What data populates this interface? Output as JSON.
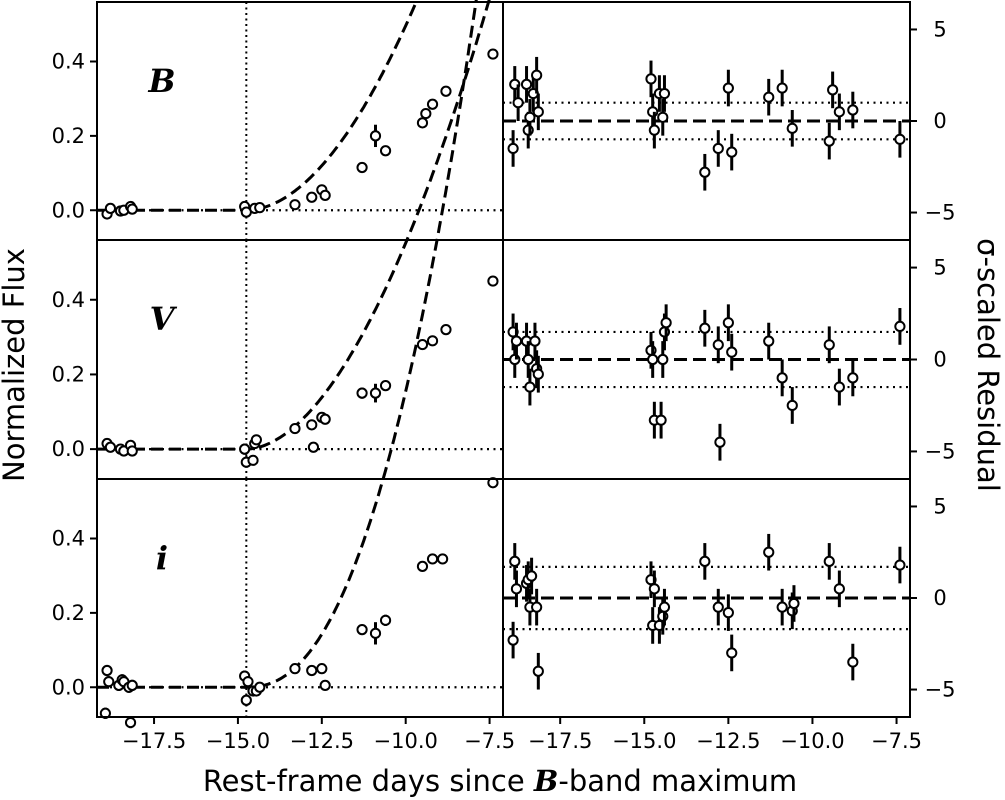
{
  "chart_data": {
    "type": "scatter",
    "xlabel_prefix": "Rest-frame days since ",
    "xlabel_band": "B",
    "xlabel_suffix": "-band maximum",
    "ylabel_left": "Normalized Flux",
    "ylabel_right": "σ-scaled Residual",
    "xlim": [
      -19.2,
      -7.1
    ],
    "flux_ylim": [
      -0.08,
      0.56
    ],
    "resid_ylim": [
      -6.5,
      6.5
    ],
    "x_ticks": [
      -17.5,
      -15.0,
      -12.5,
      -10.0,
      -7.5
    ],
    "x_tick_labels": [
      "−17.5",
      "−15.0",
      "−12.5",
      "−10.0",
      "−7.5"
    ],
    "flux_ticks": [
      0.0,
      0.2,
      0.4
    ],
    "flux_tick_labels": [
      "0.0",
      "0.2",
      "0.4"
    ],
    "resid_ticks": [
      -5,
      0,
      5
    ],
    "resid_tick_labels": [
      "−5",
      "0",
      "5"
    ],
    "first_light_day": -14.75,
    "panels": [
      {
        "band": "B",
        "resid_band": 1.0,
        "fit_coeff": 0.0257,
        "fit_power": 1.9,
        "flux_points": [
          {
            "x": -18.9,
            "y": -0.01,
            "e": 0.01
          },
          {
            "x": -18.8,
            "y": 0.005,
            "e": 0.01
          },
          {
            "x": -18.5,
            "y": -0.002,
            "e": 0.01
          },
          {
            "x": -18.4,
            "y": 0.0,
            "e": 0.01
          },
          {
            "x": -18.2,
            "y": 0.01,
            "e": 0.01
          },
          {
            "x": -18.15,
            "y": 0.003,
            "e": 0.01
          },
          {
            "x": -14.8,
            "y": 0.01,
            "e": 0.012
          },
          {
            "x": -14.75,
            "y": -0.005,
            "e": 0.012
          },
          {
            "x": -14.5,
            "y": 0.005,
            "e": 0.01
          },
          {
            "x": -14.35,
            "y": 0.007,
            "e": 0.01
          },
          {
            "x": -13.3,
            "y": 0.015,
            "e": 0.01
          },
          {
            "x": -12.8,
            "y": 0.035,
            "e": 0.01
          },
          {
            "x": -12.5,
            "y": 0.055,
            "e": 0.012
          },
          {
            "x": -12.4,
            "y": 0.04,
            "e": 0.01
          },
          {
            "x": -11.3,
            "y": 0.115,
            "e": 0.01
          },
          {
            "x": -10.9,
            "y": 0.2,
            "e": 0.03
          },
          {
            "x": -10.6,
            "y": 0.16,
            "e": 0.01
          },
          {
            "x": -9.5,
            "y": 0.235,
            "e": 0.01
          },
          {
            "x": -9.4,
            "y": 0.26,
            "e": 0.01
          },
          {
            "x": -9.2,
            "y": 0.285,
            "e": 0.01
          },
          {
            "x": -8.8,
            "y": 0.32,
            "e": 0.01
          },
          {
            "x": -7.4,
            "y": 0.42,
            "e": 0.01
          }
        ],
        "resid_points": [
          {
            "x": -18.9,
            "y": -1.5,
            "e": 1.0
          },
          {
            "x": -18.85,
            "y": 2.0,
            "e": 1.0
          },
          {
            "x": -18.75,
            "y": 1.0,
            "e": 1.0
          },
          {
            "x": -18.5,
            "y": 2.0,
            "e": 1.0
          },
          {
            "x": -18.45,
            "y": -0.5,
            "e": 1.0
          },
          {
            "x": -18.4,
            "y": 0.2,
            "e": 1.0
          },
          {
            "x": -18.3,
            "y": 1.5,
            "e": 1.0
          },
          {
            "x": -18.2,
            "y": 2.5,
            "e": 1.0
          },
          {
            "x": -18.15,
            "y": 0.5,
            "e": 1.0
          },
          {
            "x": -14.8,
            "y": 2.3,
            "e": 1.0
          },
          {
            "x": -14.75,
            "y": 0.5,
            "e": 1.0
          },
          {
            "x": -14.7,
            "y": -0.5,
            "e": 1.0
          },
          {
            "x": -14.55,
            "y": 1.5,
            "e": 1.0
          },
          {
            "x": -14.45,
            "y": 0.2,
            "e": 1.0
          },
          {
            "x": -14.4,
            "y": 1.5,
            "e": 1.0
          },
          {
            "x": -13.2,
            "y": -2.8,
            "e": 1.0
          },
          {
            "x": -12.8,
            "y": -1.5,
            "e": 1.0
          },
          {
            "x": -12.5,
            "y": 1.8,
            "e": 1.0
          },
          {
            "x": -12.4,
            "y": -1.7,
            "e": 1.0
          },
          {
            "x": -11.3,
            "y": 1.3,
            "e": 1.0
          },
          {
            "x": -10.9,
            "y": 1.8,
            "e": 1.0
          },
          {
            "x": -10.6,
            "y": -0.4,
            "e": 1.0
          },
          {
            "x": -9.5,
            "y": -1.1,
            "e": 1.0
          },
          {
            "x": -9.4,
            "y": 1.7,
            "e": 1.0
          },
          {
            "x": -9.2,
            "y": 0.5,
            "e": 1.0
          },
          {
            "x": -8.8,
            "y": 0.6,
            "e": 1.0
          },
          {
            "x": -7.4,
            "y": -1.0,
            "e": 1.0
          }
        ]
      },
      {
        "band": "V",
        "resid_band": 1.5,
        "fit_coeff": 0.0309,
        "fit_power": 1.85,
        "flux_points": [
          {
            "x": -18.9,
            "y": 0.015,
            "e": 0.01
          },
          {
            "x": -18.8,
            "y": 0.005,
            "e": 0.01
          },
          {
            "x": -18.5,
            "y": 0.0,
            "e": 0.01
          },
          {
            "x": -18.4,
            "y": -0.005,
            "e": 0.01
          },
          {
            "x": -18.2,
            "y": 0.01,
            "e": 0.01
          },
          {
            "x": -18.15,
            "y": -0.005,
            "e": 0.01
          },
          {
            "x": -14.8,
            "y": 0.0,
            "e": 0.015
          },
          {
            "x": -14.75,
            "y": -0.035,
            "e": 0.015
          },
          {
            "x": -14.55,
            "y": -0.03,
            "e": 0.01
          },
          {
            "x": -14.5,
            "y": 0.015,
            "e": 0.01
          },
          {
            "x": -14.45,
            "y": 0.025,
            "e": 0.01
          },
          {
            "x": -13.3,
            "y": 0.055,
            "e": 0.01
          },
          {
            "x": -12.8,
            "y": 0.065,
            "e": 0.01
          },
          {
            "x": -12.75,
            "y": 0.005,
            "e": 0.01
          },
          {
            "x": -12.5,
            "y": 0.085,
            "e": 0.01
          },
          {
            "x": -12.4,
            "y": 0.08,
            "e": 0.01
          },
          {
            "x": -11.3,
            "y": 0.15,
            "e": 0.015
          },
          {
            "x": -10.9,
            "y": 0.15,
            "e": 0.025
          },
          {
            "x": -10.6,
            "y": 0.17,
            "e": 0.012
          },
          {
            "x": -9.5,
            "y": 0.28,
            "e": 0.01
          },
          {
            "x": -9.2,
            "y": 0.29,
            "e": 0.01
          },
          {
            "x": -8.8,
            "y": 0.32,
            "e": 0.01
          },
          {
            "x": -7.4,
            "y": 0.45,
            "e": 0.01
          }
        ],
        "resid_points": [
          {
            "x": -18.9,
            "y": 1.5,
            "e": 1.0
          },
          {
            "x": -18.85,
            "y": 0.0,
            "e": 1.0
          },
          {
            "x": -18.8,
            "y": 1.0,
            "e": 1.0
          },
          {
            "x": -18.5,
            "y": 1.0,
            "e": 1.0
          },
          {
            "x": -18.45,
            "y": 0.0,
            "e": 1.0
          },
          {
            "x": -18.4,
            "y": -1.5,
            "e": 1.0
          },
          {
            "x": -18.25,
            "y": 1.0,
            "e": 1.0
          },
          {
            "x": -18.2,
            "y": -0.5,
            "e": 1.0
          },
          {
            "x": -18.15,
            "y": -0.8,
            "e": 1.0
          },
          {
            "x": -14.8,
            "y": 0.5,
            "e": 1.0
          },
          {
            "x": -14.75,
            "y": 0.0,
            "e": 1.0
          },
          {
            "x": -14.7,
            "y": -3.3,
            "e": 1.0
          },
          {
            "x": -14.5,
            "y": -3.3,
            "e": 1.0
          },
          {
            "x": -14.45,
            "y": 0.0,
            "e": 1.0
          },
          {
            "x": -14.4,
            "y": 1.5,
            "e": 1.0
          },
          {
            "x": -14.35,
            "y": 2.0,
            "e": 1.0
          },
          {
            "x": -13.2,
            "y": 1.7,
            "e": 1.0
          },
          {
            "x": -12.8,
            "y": 0.8,
            "e": 1.0
          },
          {
            "x": -12.75,
            "y": -4.5,
            "e": 1.0
          },
          {
            "x": -12.5,
            "y": 2.0,
            "e": 1.0
          },
          {
            "x": -12.4,
            "y": 0.4,
            "e": 1.0
          },
          {
            "x": -11.3,
            "y": 1.0,
            "e": 1.0
          },
          {
            "x": -10.9,
            "y": -1.0,
            "e": 1.0
          },
          {
            "x": -10.6,
            "y": -2.5,
            "e": 1.0
          },
          {
            "x": -9.5,
            "y": 0.8,
            "e": 1.0
          },
          {
            "x": -9.2,
            "y": -1.5,
            "e": 1.0
          },
          {
            "x": -8.8,
            "y": -1.0,
            "e": 1.0
          },
          {
            "x": -7.4,
            "y": 1.8,
            "e": 1.0
          }
        ]
      },
      {
        "band": "i",
        "resid_band": 1.7,
        "fit_coeff": 0.0221,
        "fit_power": 2.3,
        "flux_points": [
          {
            "x": -18.95,
            "y": -0.07,
            "e": 0.015
          },
          {
            "x": -18.9,
            "y": 0.045,
            "e": 0.015
          },
          {
            "x": -18.85,
            "y": 0.015,
            "e": 0.015
          },
          {
            "x": -18.55,
            "y": 0.005,
            "e": 0.015
          },
          {
            "x": -18.45,
            "y": 0.02,
            "e": 0.015
          },
          {
            "x": -18.4,
            "y": 0.015,
            "e": 0.015
          },
          {
            "x": -18.25,
            "y": 0.0,
            "e": 0.015
          },
          {
            "x": -18.2,
            "y": -0.095,
            "e": 0.015
          },
          {
            "x": -18.15,
            "y": 0.005,
            "e": 0.015
          },
          {
            "x": -14.8,
            "y": 0.03,
            "e": 0.015
          },
          {
            "x": -14.75,
            "y": -0.035,
            "e": 0.015
          },
          {
            "x": -14.7,
            "y": 0.015,
            "e": 0.015
          },
          {
            "x": -14.55,
            "y": -0.01,
            "e": 0.012
          },
          {
            "x": -14.45,
            "y": -0.01,
            "e": 0.012
          },
          {
            "x": -14.35,
            "y": 0.0,
            "e": 0.012
          },
          {
            "x": -13.3,
            "y": 0.05,
            "e": 0.012
          },
          {
            "x": -12.8,
            "y": 0.045,
            "e": 0.012
          },
          {
            "x": -12.5,
            "y": 0.05,
            "e": 0.012
          },
          {
            "x": -12.4,
            "y": 0.005,
            "e": 0.012
          },
          {
            "x": -11.3,
            "y": 0.155,
            "e": 0.012
          },
          {
            "x": -10.9,
            "y": 0.145,
            "e": 0.03
          },
          {
            "x": -10.6,
            "y": 0.18,
            "e": 0.015
          },
          {
            "x": -9.5,
            "y": 0.325,
            "e": 0.012
          },
          {
            "x": -9.2,
            "y": 0.345,
            "e": 0.012
          },
          {
            "x": -8.9,
            "y": 0.345,
            "e": 0.012
          },
          {
            "x": -7.4,
            "y": 0.55,
            "e": 0.012
          }
        ],
        "resid_points": [
          {
            "x": -18.9,
            "y": -2.3,
            "e": 1.0
          },
          {
            "x": -18.85,
            "y": 2.0,
            "e": 1.0
          },
          {
            "x": -18.8,
            "y": 0.5,
            "e": 1.0
          },
          {
            "x": -18.5,
            "y": 0.8,
            "e": 1.0
          },
          {
            "x": -18.45,
            "y": 1.0,
            "e": 1.0
          },
          {
            "x": -18.4,
            "y": -0.5,
            "e": 1.0
          },
          {
            "x": -18.35,
            "y": 1.2,
            "e": 1.0
          },
          {
            "x": -18.2,
            "y": -0.5,
            "e": 1.0
          },
          {
            "x": -18.15,
            "y": -4.0,
            "e": 1.0
          },
          {
            "x": -14.8,
            "y": 1.0,
            "e": 1.0
          },
          {
            "x": -14.75,
            "y": -1.5,
            "e": 1.0
          },
          {
            "x": -14.7,
            "y": 0.5,
            "e": 1.0
          },
          {
            "x": -14.55,
            "y": -1.5,
            "e": 1.0
          },
          {
            "x": -14.45,
            "y": -1.0,
            "e": 1.0
          },
          {
            "x": -14.4,
            "y": -0.5,
            "e": 1.0
          },
          {
            "x": -13.2,
            "y": 2.0,
            "e": 1.0
          },
          {
            "x": -12.8,
            "y": -0.5,
            "e": 1.0
          },
          {
            "x": -12.5,
            "y": -0.8,
            "e": 1.0
          },
          {
            "x": -12.4,
            "y": -3.0,
            "e": 1.0
          },
          {
            "x": -11.3,
            "y": 2.5,
            "e": 1.0
          },
          {
            "x": -10.9,
            "y": -0.5,
            "e": 1.0
          },
          {
            "x": -10.6,
            "y": -0.7,
            "e": 1.0
          },
          {
            "x": -10.55,
            "y": -0.3,
            "e": 1.0
          },
          {
            "x": -9.5,
            "y": 2.0,
            "e": 1.0
          },
          {
            "x": -9.2,
            "y": 0.5,
            "e": 1.0
          },
          {
            "x": -8.8,
            "y": -3.5,
            "e": 1.0
          },
          {
            "x": -7.4,
            "y": 1.8,
            "e": 1.0
          }
        ]
      }
    ]
  }
}
